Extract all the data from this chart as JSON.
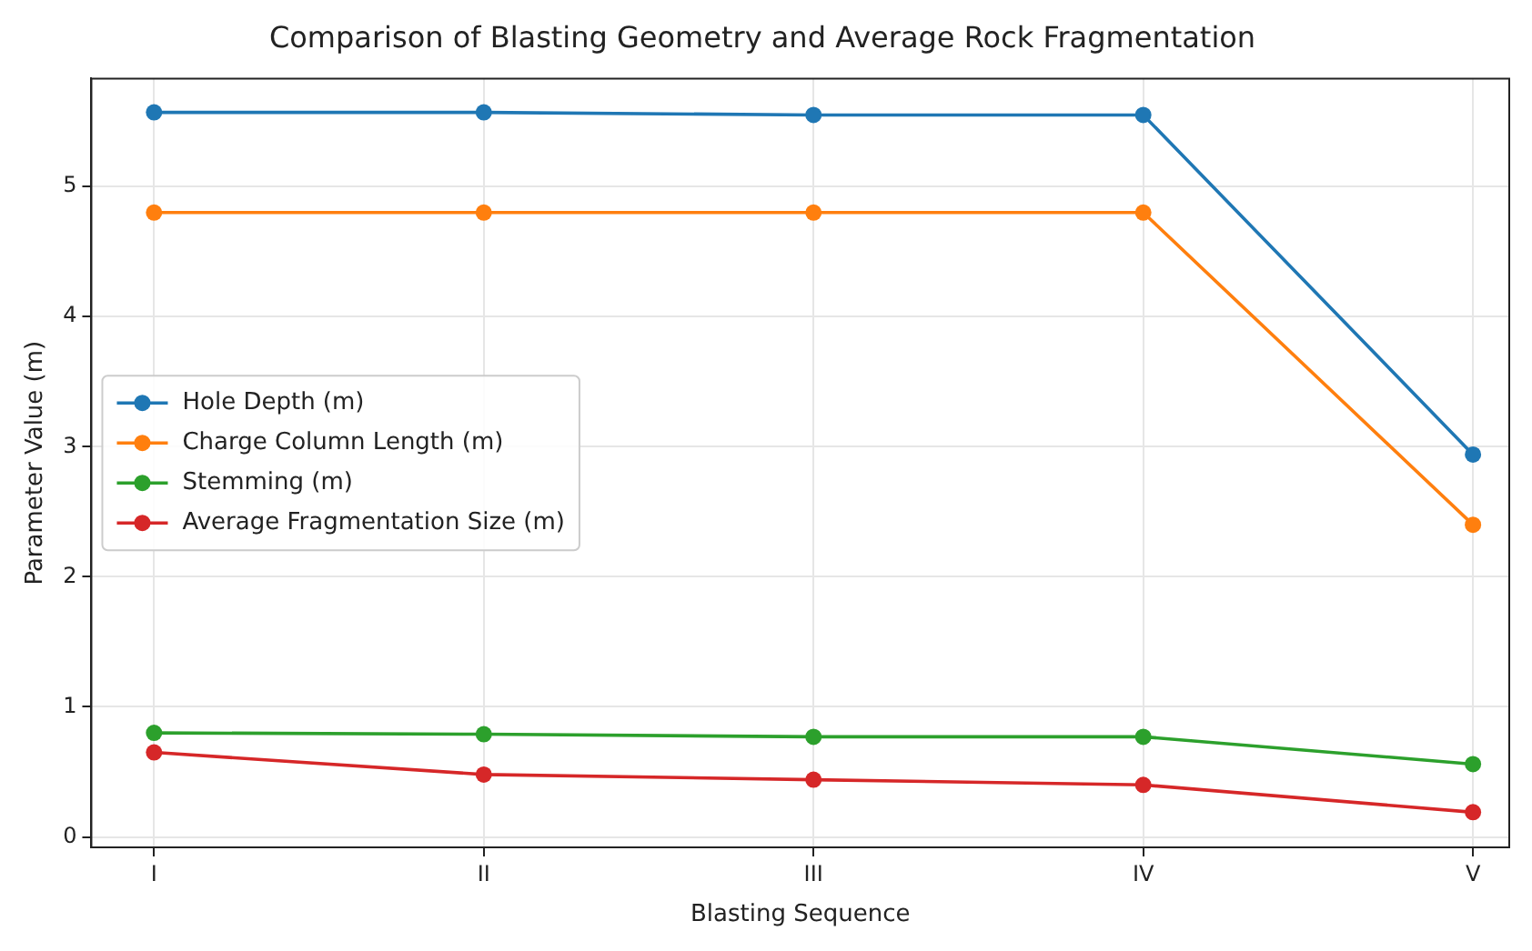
{
  "chart_data": {
    "type": "line",
    "title": "Comparison of Blasting Geometry and Average Rock Fragmentation",
    "xlabel": "Blasting Sequence",
    "ylabel": "Parameter Value (m)",
    "categories": [
      "I",
      "II",
      "III",
      "IV",
      "V"
    ],
    "series": [
      {
        "name": "Hole Depth (m)",
        "color": "#1f77b4",
        "values": [
          5.57,
          5.57,
          5.55,
          5.55,
          2.94
        ]
      },
      {
        "name": "Charge Column Length (m)",
        "color": "#ff7f0e",
        "values": [
          4.8,
          4.8,
          4.8,
          4.8,
          2.4
        ]
      },
      {
        "name": "Stemming (m)",
        "color": "#2ca02c",
        "values": [
          0.8,
          0.79,
          0.77,
          0.77,
          0.56
        ]
      },
      {
        "name": "Average Fragmentation Size (m)",
        "color": "#d62728",
        "values": [
          0.65,
          0.48,
          0.44,
          0.4,
          0.19
        ]
      }
    ],
    "ylim": [
      -0.08,
      5.83
    ],
    "yticks": [
      0,
      1,
      2,
      3,
      4,
      5
    ],
    "grid": true,
    "legend": "left",
    "marker": "circle",
    "line_style": "solid"
  }
}
